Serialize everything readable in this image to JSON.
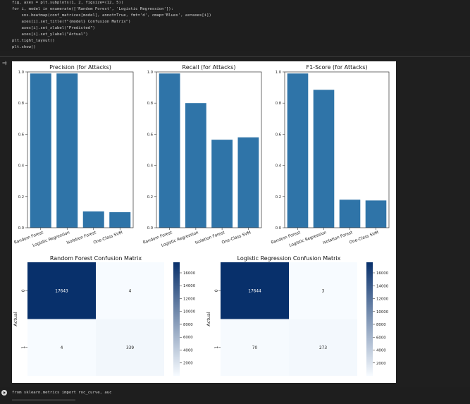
{
  "code_cell": {
    "lines": [
      "fig, axes = plt.subplots(1, 2, figsize=(12, 5))",
      "for i, model in enumerate(['Random Forest', 'Logistic Regression']):",
      "    sns.heatmap(conf_matrices[model], annot=True, fmt='d', cmap='Blues', ax=axes[i])",
      "    axes[i].set_title(f\"{model} Confusion Matrix\")",
      "    axes[i].set_xlabel(\"Predicted\")",
      "    axes[i].set_ylabel(\"Actual\")",
      "plt.tight_layout()",
      "plt.show()"
    ]
  },
  "next_cell": {
    "code": "from sklearn.metrics import roc_curve, auc"
  },
  "colors": {
    "bar": "#2f74a8",
    "background_page": "#1f1f1f",
    "figure_bg": "#ffffff"
  },
  "chart_data": [
    {
      "type": "bar",
      "title": "Precision (for Attacks)",
      "categories": [
        "Random Forest",
        "Logistic Regression",
        "Isolation Forest",
        "One-Class SVM"
      ],
      "values": [
        0.99,
        0.99,
        0.105,
        0.1
      ],
      "ylim": [
        0,
        1.0
      ],
      "yticks": [
        "0.0",
        "0.2",
        "0.4",
        "0.6",
        "0.8",
        "1.0"
      ]
    },
    {
      "type": "bar",
      "title": "Recall (for Attacks)",
      "categories": [
        "Random Forest",
        "Logistic Regression",
        "Isolation Forest",
        "One-Class SVM"
      ],
      "values": [
        0.99,
        0.8,
        0.565,
        0.58
      ],
      "ylim": [
        0,
        1.0
      ],
      "yticks": [
        "0.0",
        "0.2",
        "0.4",
        "0.6",
        "0.8",
        "1.0"
      ]
    },
    {
      "type": "bar",
      "title": "F1-Score (for Attacks)",
      "categories": [
        "Random Forest",
        "Logistic Regression",
        "Isolation Forest",
        "One-Class SVM"
      ],
      "values": [
        0.99,
        0.885,
        0.18,
        0.175
      ],
      "ylim": [
        0,
        1.0
      ],
      "yticks": [
        "0.0",
        "0.2",
        "0.4",
        "0.6",
        "0.8",
        "1.0"
      ]
    },
    {
      "type": "heatmap",
      "title": "Random Forest Confusion Matrix",
      "ylabel": "Actual",
      "row_labels": [
        "0",
        "1"
      ],
      "values": [
        [
          17643,
          4
        ],
        [
          4,
          339
        ]
      ],
      "colorbar_ticks": [
        "16000",
        "14000",
        "12000",
        "10000",
        "8000",
        "6000",
        "4000",
        "2000"
      ],
      "colorbar_range": [
        0,
        17643
      ]
    },
    {
      "type": "heatmap",
      "title": "Logistic Regression Confusion Matrix",
      "ylabel": "Actual",
      "row_labels": [
        "0",
        "1"
      ],
      "values": [
        [
          17644,
          3
        ],
        [
          70,
          273
        ]
      ],
      "colorbar_ticks": [
        "16000",
        "14000",
        "12000",
        "10000",
        "8000",
        "6000",
        "4000",
        "2000"
      ],
      "colorbar_range": [
        0,
        17644
      ]
    }
  ]
}
